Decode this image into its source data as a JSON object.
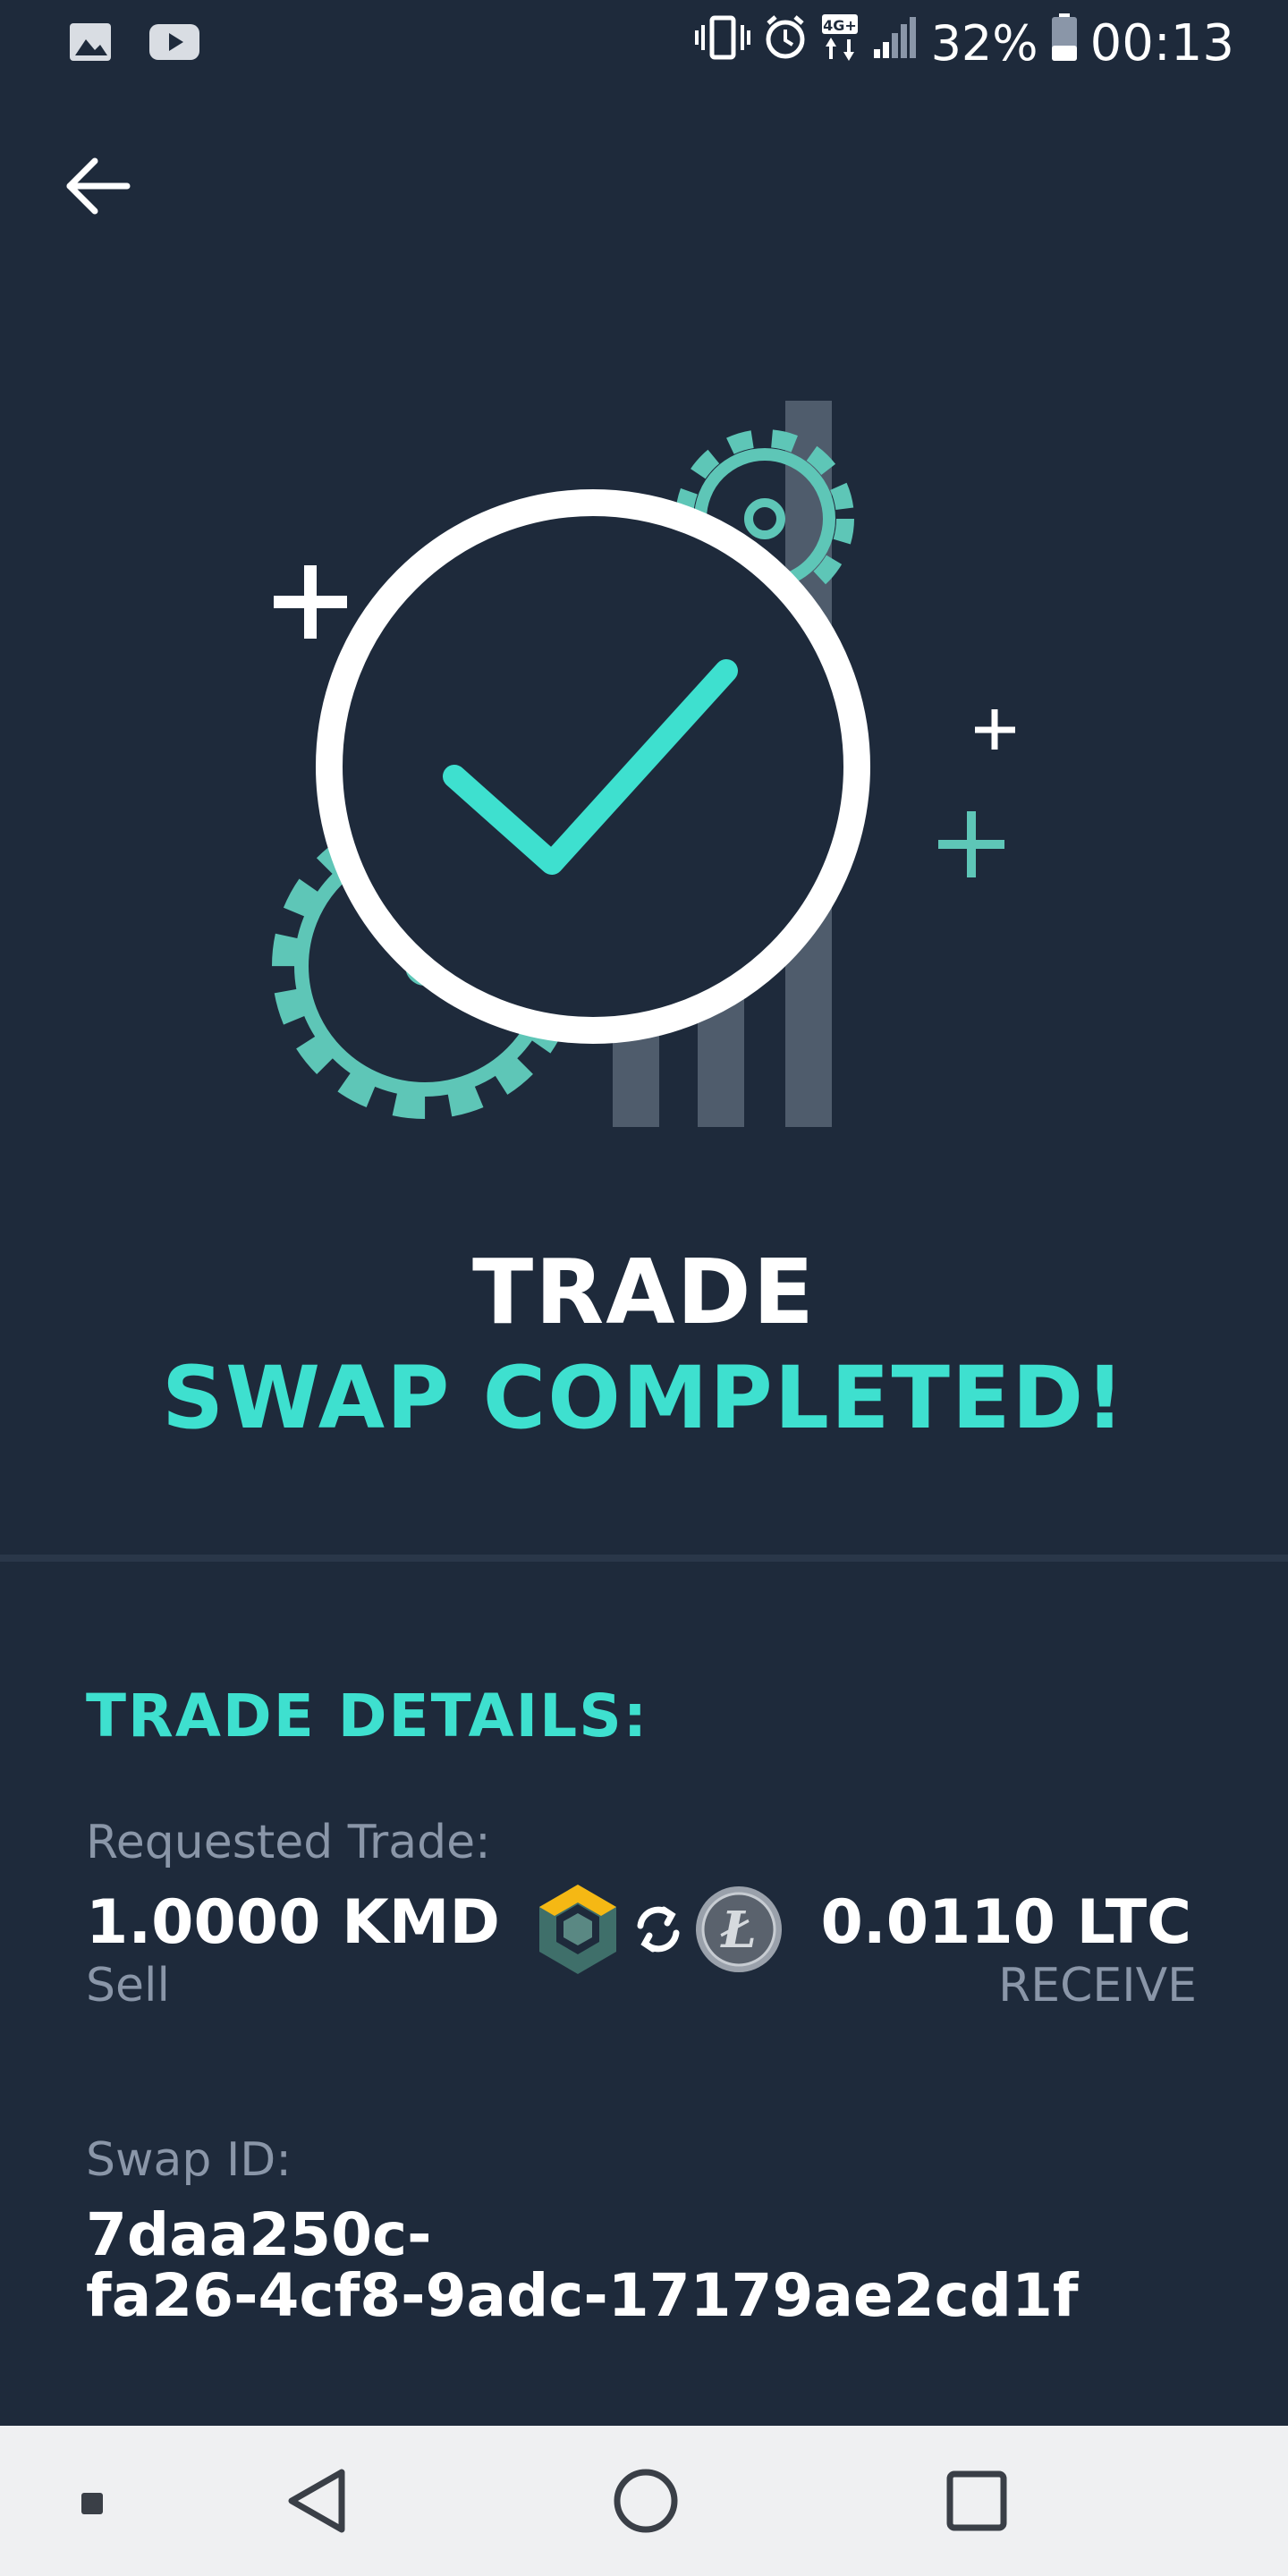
{
  "status_bar": {
    "left_icons": [
      "image-icon",
      "youtube-icon"
    ],
    "right_icons": [
      "vibrate-icon",
      "alarm-icon",
      "4g-icon",
      "signal-icon"
    ],
    "network_label": "4G+",
    "battery_percent": "32%",
    "battery_level": 0.32,
    "time": "00:13"
  },
  "header": {
    "back_icon": "arrow-left-icon"
  },
  "illustration": {
    "icon": "checkmark-circle-icon",
    "accent_color": "#3ee0cf",
    "gear_color": "#5ec6b7"
  },
  "headline": {
    "line1": "TRADE",
    "line2": "SWAP COMPLETED!"
  },
  "details": {
    "title": "TRADE DETAILS:",
    "requested_label": "Requested Trade:",
    "sell_amount": "1.0000 KMD",
    "sell_label": "Sell",
    "receive_amount": "0.0110 LTC",
    "receive_label": "RECEIVE",
    "sell_coin_icon": "komodo-coin-icon",
    "swap_icon": "swap-arrows-icon",
    "receive_coin_icon": "litecoin-icon",
    "swap_id_label": "Swap ID:",
    "swap_id_line1": "7daa250c-",
    "swap_id_line2": "fa26-4cf8-9adc-17179ae2cd1f"
  },
  "nav_bar": {
    "items": [
      "recent-dot-icon",
      "back-triangle-icon",
      "home-circle-icon",
      "overview-square-icon"
    ]
  },
  "colors": {
    "background": "#1e2a3b",
    "accent": "#3ee0cf",
    "muted_text": "#8a96a8",
    "nav_background": "#eff0f2"
  }
}
